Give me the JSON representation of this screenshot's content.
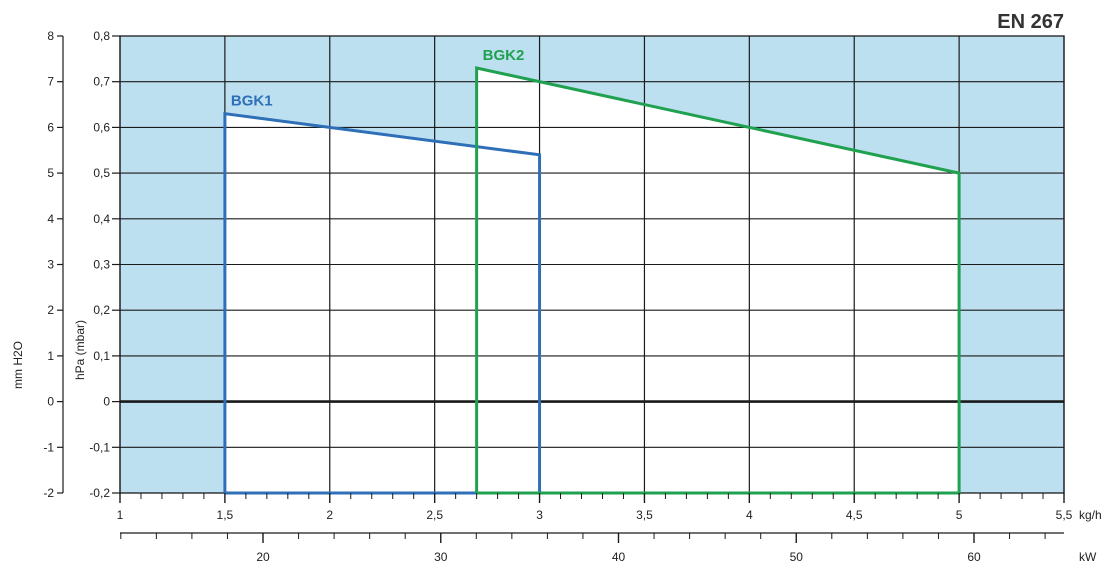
{
  "chart_data": {
    "type": "area",
    "title": "EN 267",
    "x_axis": {
      "label": "kg/h",
      "range": [
        1,
        5.5
      ],
      "ticks": [
        1,
        1.5,
        2,
        2.5,
        3,
        3.5,
        4,
        4.5,
        5,
        5.5
      ],
      "tick_labels": [
        "1",
        "1,5",
        "2",
        "2,5",
        "3",
        "3,5",
        "4",
        "4,5",
        "5",
        "5,5"
      ]
    },
    "x2_axis": {
      "label": "kW",
      "ticks": [
        20,
        30,
        40,
        50,
        60
      ],
      "tick_labels": [
        "20",
        "30",
        "40",
        "50",
        "60"
      ]
    },
    "y_axis": {
      "label": "hPa (mbar)",
      "range": [
        -0.2,
        0.8
      ],
      "ticks": [
        -0.2,
        -0.1,
        0,
        0.1,
        0.2,
        0.3,
        0.4,
        0.5,
        0.6,
        0.7,
        0.8
      ],
      "tick_labels": [
        "-0,2",
        "-0,1",
        "0",
        "0,1",
        "0,2",
        "0,3",
        "0,4",
        "0,5",
        "0,6",
        "0,7",
        "0,8"
      ]
    },
    "y2_axis": {
      "label": "mm H2O",
      "ticks": [
        -2,
        -1,
        0,
        1,
        2,
        3,
        4,
        5,
        6,
        7,
        8
      ],
      "tick_labels": [
        "-2",
        "-1",
        "0",
        "1",
        "2",
        "3",
        "4",
        "5",
        "6",
        "7",
        "8"
      ]
    },
    "grid": true,
    "series": [
      {
        "name": "BGK1",
        "color": "#2e6fb7",
        "x": [
          1.5,
          1.5,
          3.0,
          3.0,
          1.5
        ],
        "y": [
          -0.2,
          0.63,
          0.54,
          -0.2,
          -0.2
        ]
      },
      {
        "name": "BGK2",
        "color": "#1fa150",
        "x": [
          2.7,
          2.7,
          5.0,
          5.0,
          2.7
        ],
        "y": [
          -0.2,
          0.73,
          0.5,
          -0.2,
          -0.2
        ]
      }
    ]
  }
}
